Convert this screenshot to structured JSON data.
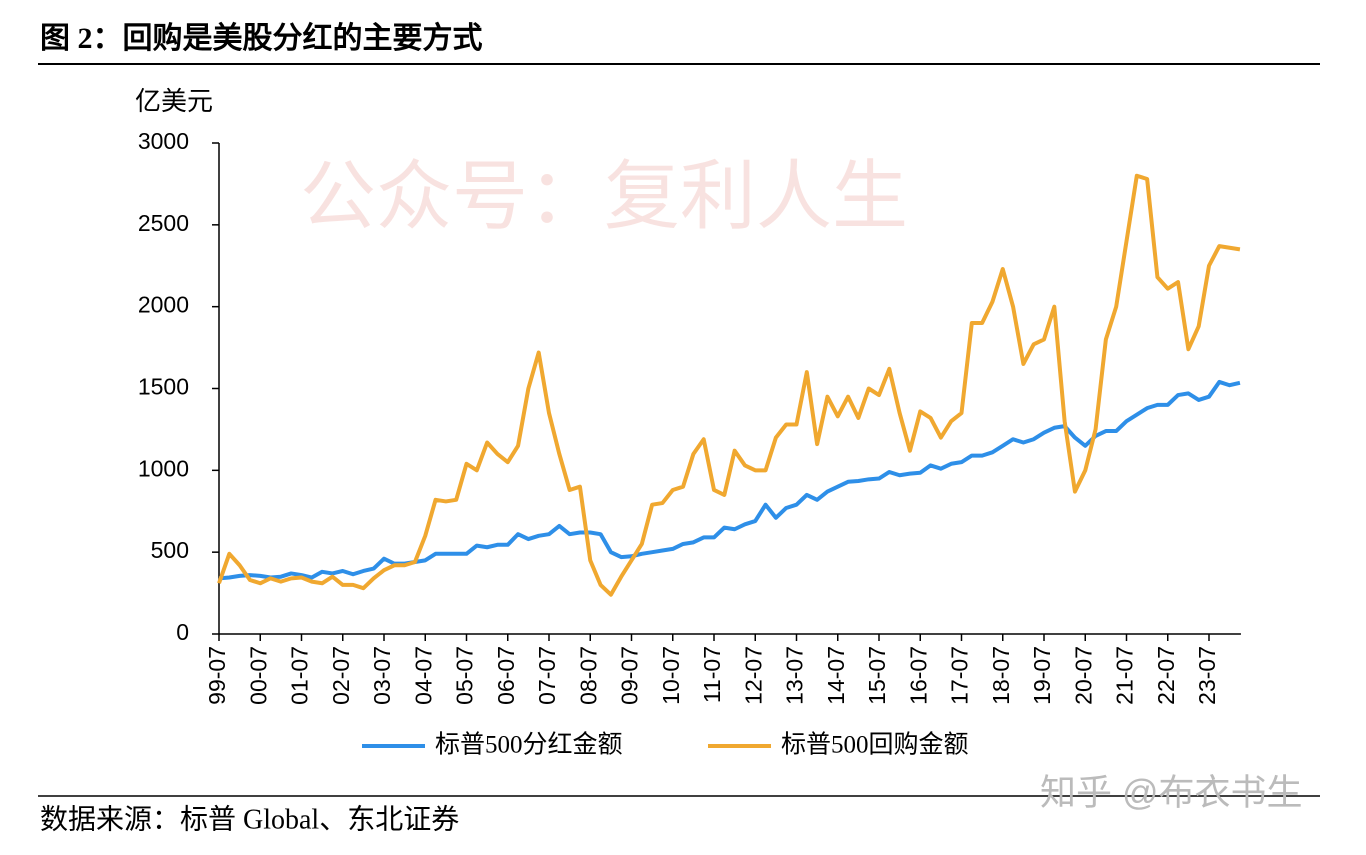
{
  "chart_data": {
    "type": "line",
    "title": "图 2：回购是美股分红的主要方式",
    "y_label": "亿美元",
    "source": "数据来源：标普 Global、东北证券",
    "watermarks": [
      "公众号：复利人生",
      "知乎 @布衣书生"
    ],
    "categories": [
      "99-07",
      null,
      null,
      null,
      "00-07",
      null,
      null,
      null,
      "01-07",
      null,
      null,
      null,
      "02-07",
      null,
      null,
      null,
      "03-07",
      null,
      null,
      null,
      "04-07",
      null,
      null,
      null,
      "05-07",
      null,
      null,
      null,
      "06-07",
      null,
      null,
      null,
      "07-07",
      null,
      null,
      null,
      "08-07",
      null,
      null,
      null,
      "09-07",
      null,
      null,
      null,
      "10-07",
      null,
      null,
      null,
      "11-07",
      null,
      null,
      null,
      "12-07",
      null,
      null,
      null,
      "13-07",
      null,
      null,
      null,
      "14-07",
      null,
      null,
      null,
      "15-07",
      null,
      null,
      null,
      "16-07",
      null,
      null,
      null,
      "17-07",
      null,
      null,
      null,
      "18-07",
      null,
      null,
      null,
      "19-07",
      null,
      null,
      null,
      "20-07",
      null,
      null,
      null,
      "21-07",
      null,
      null,
      null,
      "22-07",
      null,
      null,
      null,
      "23-07",
      null,
      null,
      null
    ],
    "series": [
      {
        "name": "标普500分红金额",
        "color": "#2e8fe8",
        "values": [
          340,
          345,
          355,
          360,
          355,
          345,
          350,
          370,
          360,
          345,
          380,
          370,
          385,
          365,
          385,
          400,
          460,
          430,
          430,
          440,
          450,
          490,
          490,
          490,
          490,
          540,
          530,
          545,
          545,
          610,
          580,
          600,
          610,
          660,
          610,
          620,
          620,
          610,
          500,
          470,
          475,
          490,
          500,
          510,
          520,
          550,
          560,
          590,
          590,
          650,
          640,
          670,
          690,
          790,
          710,
          770,
          790,
          850,
          820,
          870,
          900,
          930,
          935,
          945,
          950,
          990,
          970,
          980,
          985,
          1030,
          1010,
          1040,
          1050,
          1090,
          1090,
          1110,
          1150,
          1190,
          1170,
          1190,
          1230,
          1260,
          1270,
          1200,
          1150,
          1210,
          1240,
          1240,
          1300,
          1340,
          1380,
          1400,
          1400,
          1460,
          1470,
          1430,
          1450,
          1540,
          1520,
          1535
        ]
      },
      {
        "name": "标普500回购金额",
        "color": "#f0a830",
        "values": [
          310,
          490,
          420,
          330,
          310,
          340,
          320,
          340,
          345,
          320,
          310,
          350,
          300,
          300,
          280,
          340,
          390,
          420,
          420,
          440,
          600,
          820,
          810,
          820,
          1040,
          1000,
          1170,
          1100,
          1050,
          1150,
          1500,
          1720,
          1350,
          1100,
          880,
          900,
          450,
          300,
          240,
          350,
          450,
          550,
          790,
          800,
          880,
          900,
          1100,
          1190,
          880,
          850,
          1120,
          1030,
          1000,
          1000,
          1200,
          1280,
          1280,
          1600,
          1160,
          1450,
          1330,
          1450,
          1320,
          1500,
          1460,
          1620,
          1350,
          1120,
          1360,
          1320,
          1200,
          1300,
          1350,
          1900,
          1900,
          2030,
          2230,
          2000,
          1650,
          1770,
          1800,
          2000,
          1300,
          870,
          1000,
          1250,
          1800,
          2000,
          2400,
          2800,
          2780,
          2180,
          2110,
          2150,
          1740,
          1880,
          2250,
          2370,
          2360,
          2350
        ]
      }
    ],
    "ylim": [
      0,
      3000
    ],
    "yticks": [
      0,
      500,
      1000,
      1500,
      2000,
      2500,
      3000
    ],
    "grid": false,
    "legend": "bottom"
  }
}
